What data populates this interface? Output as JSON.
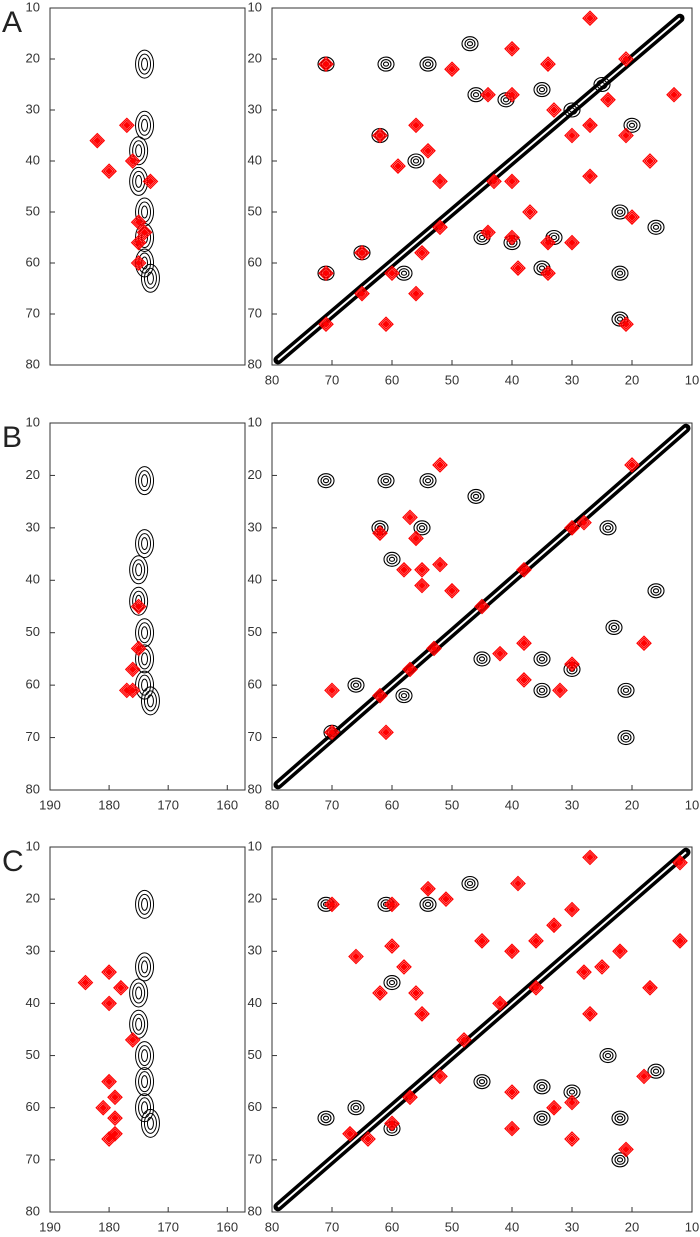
{
  "chart_data": [
    {
      "type": "contour",
      "label": "A",
      "xlim": [
        190,
        157
      ],
      "ylim": [
        80,
        10
      ],
      "yticks": [
        10,
        20,
        30,
        40,
        50,
        60,
        70,
        80
      ],
      "series": [
        {
          "color": "#000000",
          "mark": "blob",
          "x": [
            174,
            174,
            175,
            175,
            174,
            174,
            174,
            173
          ],
          "y": [
            21,
            33,
            38,
            44,
            50,
            55,
            60,
            63
          ]
        },
        {
          "color": "#ff0000",
          "mark": "diamond",
          "x": [
            182,
            177,
            180,
            176,
            173,
            175,
            175,
            175,
            174
          ],
          "y": [
            36,
            33,
            42,
            40,
            44,
            52,
            56,
            60,
            54
          ]
        }
      ]
    },
    {
      "type": "contour",
      "xlim": [
        80,
        10
      ],
      "ylim": [
        80,
        10
      ],
      "xticks": [
        80,
        70,
        60,
        50,
        40,
        30,
        20,
        10
      ],
      "yticks": [
        10,
        20,
        30,
        40,
        50,
        60,
        70,
        80
      ],
      "series": [
        {
          "color": "#000000",
          "mark": "line",
          "x": [
            79,
            70,
            60,
            50,
            40,
            30,
            20,
            12
          ],
          "y": [
            79,
            70,
            60,
            50,
            40,
            30,
            20,
            12
          ]
        },
        {
          "color": "#000000",
          "mark": "peak",
          "x": [
            71,
            61,
            54,
            47,
            71,
            62,
            56,
            41,
            46,
            35,
            30,
            25,
            20,
            22,
            16,
            22,
            22,
            35,
            33,
            45,
            40,
            58,
            65
          ],
          "y": [
            21,
            21,
            21,
            17,
            62,
            35,
            40,
            28,
            27,
            26,
            30,
            25,
            33,
            50,
            53,
            62,
            71,
            61,
            55,
            55,
            56,
            62,
            58
          ]
        },
        {
          "color": "#ff0000",
          "mark": "diamond",
          "x": [
            71,
            50,
            40,
            27,
            21,
            13,
            17,
            20,
            21,
            61,
            71,
            71,
            65,
            60,
            65,
            56,
            55,
            52,
            62,
            56,
            54,
            59,
            52,
            43,
            40,
            44,
            40,
            34,
            33,
            30,
            27,
            24,
            27,
            21,
            44,
            40,
            34,
            30,
            34,
            39,
            37
          ],
          "y": [
            21,
            22,
            18,
            12,
            20,
            27,
            40,
            51,
            72,
            72,
            72,
            62,
            66,
            62,
            58,
            66,
            58,
            53,
            35,
            33,
            38,
            41,
            44,
            44,
            44,
            27,
            27,
            21,
            30,
            35,
            33,
            28,
            43,
            35,
            54,
            55,
            56,
            56,
            62,
            61,
            50
          ]
        }
      ]
    },
    {
      "type": "contour",
      "label": "B",
      "xlim": [
        190,
        157
      ],
      "ylim": [
        80,
        10
      ],
      "xticks": [
        190,
        180,
        170,
        160
      ],
      "yticks": [
        10,
        20,
        30,
        40,
        50,
        60,
        70,
        80
      ],
      "series": [
        {
          "color": "#000000",
          "mark": "blob",
          "x": [
            174,
            174,
            175,
            175,
            174,
            174,
            174,
            173
          ],
          "y": [
            21,
            33,
            38,
            44,
            50,
            55,
            60,
            63
          ]
        },
        {
          "color": "#ff0000",
          "mark": "diamond",
          "x": [
            175,
            175,
            176,
            176,
            177
          ],
          "y": [
            45,
            53,
            57,
            61,
            61
          ]
        }
      ]
    },
    {
      "type": "contour",
      "xlim": [
        80,
        10
      ],
      "ylim": [
        80,
        10
      ],
      "xticks": [
        80,
        70,
        60,
        50,
        40,
        30,
        20,
        10
      ],
      "yticks": [
        10,
        20,
        30,
        40,
        50,
        60,
        70,
        80
      ],
      "series": [
        {
          "color": "#000000",
          "mark": "line",
          "x": [
            79,
            70,
            60,
            50,
            40,
            30,
            20,
            11
          ],
          "y": [
            79,
            70,
            60,
            50,
            40,
            30,
            20,
            11
          ]
        },
        {
          "color": "#000000",
          "mark": "peak",
          "x": [
            71,
            61,
            54,
            46,
            70,
            62,
            60,
            24,
            23,
            16,
            21,
            21,
            35,
            35,
            45,
            30,
            58,
            66,
            55
          ],
          "y": [
            21,
            21,
            21,
            24,
            69,
            30,
            36,
            30,
            49,
            42,
            61,
            70,
            61,
            55,
            55,
            57,
            62,
            60,
            30
          ]
        },
        {
          "color": "#ff0000",
          "mark": "diamond",
          "x": [
            52,
            62,
            57,
            56,
            55,
            58,
            55,
            52,
            50,
            45,
            38,
            30,
            28,
            20,
            18,
            32,
            30,
            38,
            38,
            42,
            61,
            70,
            70,
            62,
            57,
            53
          ],
          "y": [
            18,
            31,
            28,
            32,
            38,
            38,
            41,
            37,
            42,
            45,
            38,
            30,
            29,
            18,
            52,
            61,
            56,
            52,
            59,
            54,
            69,
            61,
            69,
            62,
            57,
            53
          ]
        }
      ]
    },
    {
      "type": "contour",
      "label": "C",
      "xlim": [
        190,
        157
      ],
      "ylim": [
        80,
        10
      ],
      "xticks": [
        190,
        180,
        170,
        160
      ],
      "yticks": [
        10,
        20,
        30,
        40,
        50,
        60,
        70,
        80
      ],
      "series": [
        {
          "color": "#000000",
          "mark": "blob",
          "x": [
            174,
            174,
            175,
            175,
            174,
            174,
            174,
            173
          ],
          "y": [
            21,
            33,
            38,
            44,
            50,
            55,
            60,
            63
          ]
        },
        {
          "color": "#ff0000",
          "mark": "diamond",
          "x": [
            180,
            180,
            178,
            176,
            180,
            179,
            179,
            179,
            181,
            184,
            180
          ],
          "y": [
            34,
            40,
            37,
            47,
            55,
            58,
            62,
            65,
            60,
            36,
            66
          ]
        }
      ]
    },
    {
      "type": "contour",
      "xlim": [
        80,
        10
      ],
      "ylim": [
        80,
        10
      ],
      "xticks": [
        80,
        70,
        60,
        50,
        40,
        30,
        20,
        10
      ],
      "yticks": [
        10,
        20,
        30,
        40,
        50,
        60,
        70,
        80
      ],
      "series": [
        {
          "color": "#000000",
          "mark": "line",
          "x": [
            79,
            70,
            60,
            50,
            40,
            30,
            20,
            11
          ],
          "y": [
            79,
            70,
            60,
            50,
            40,
            30,
            20,
            11
          ]
        },
        {
          "color": "#000000",
          "mark": "peak",
          "x": [
            71,
            61,
            54,
            47,
            71,
            60,
            24,
            16,
            22,
            22,
            35,
            35,
            45,
            60,
            66,
            30
          ],
          "y": [
            21,
            21,
            21,
            17,
            62,
            36,
            50,
            53,
            62,
            70,
            62,
            56,
            55,
            64,
            60,
            57
          ]
        },
        {
          "color": "#ff0000",
          "mark": "diamond",
          "x": [
            70,
            60,
            54,
            51,
            39,
            27,
            12,
            12,
            17,
            18,
            21,
            66,
            60,
            58,
            62,
            56,
            55,
            48,
            45,
            40,
            36,
            33,
            30,
            28,
            25,
            22,
            27,
            33,
            30,
            40,
            40,
            30,
            67,
            64,
            60,
            57,
            52,
            42,
            36
          ],
          "y": [
            21,
            21,
            18,
            20,
            17,
            12,
            13,
            28,
            37,
            54,
            68,
            31,
            29,
            33,
            38,
            38,
            42,
            47,
            28,
            30,
            28,
            25,
            22,
            34,
            33,
            30,
            42,
            60,
            66,
            57,
            64,
            59,
            65,
            66,
            63,
            58,
            54,
            40,
            37
          ]
        }
      ]
    }
  ]
}
